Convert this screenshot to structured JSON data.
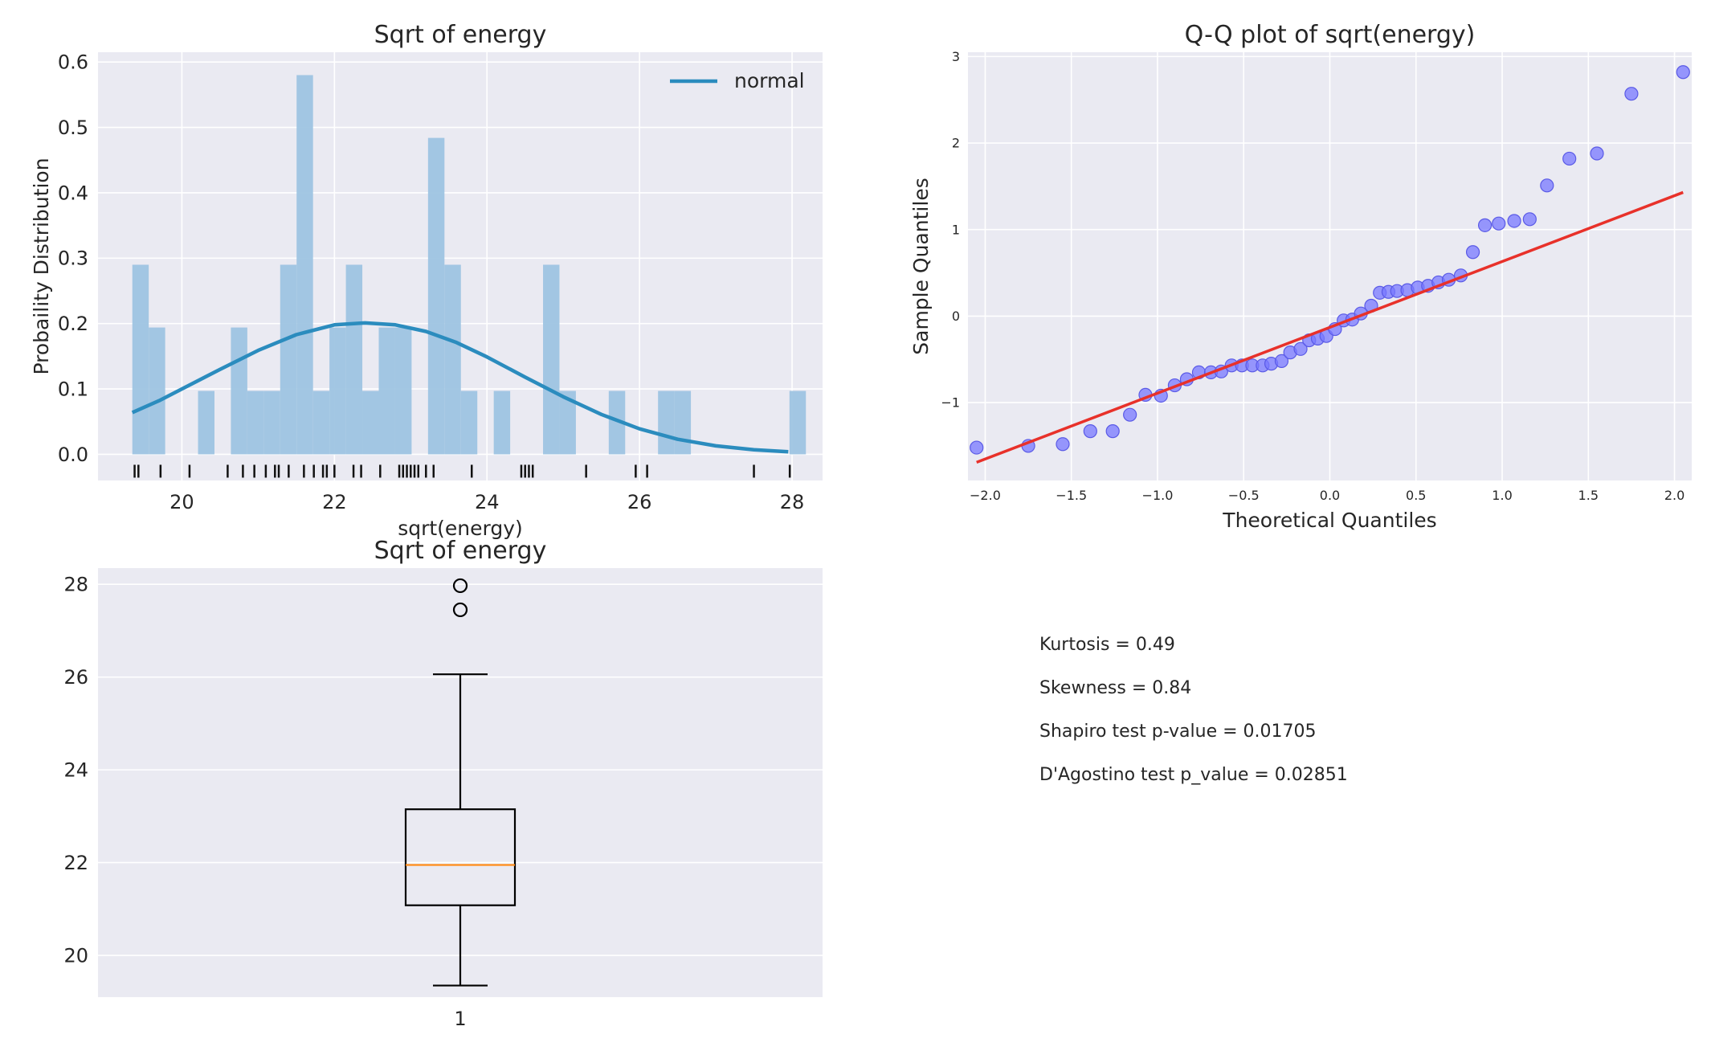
{
  "chart_data": [
    {
      "type": "histogram",
      "title": "Sqrt of energy",
      "xlabel": "sqrt(energy)",
      "ylabel": "Probaility Distribution",
      "xlim": [
        18.9,
        28.4
      ],
      "ylim": [
        -0.04,
        0.615
      ],
      "xticks": [
        20,
        22,
        24,
        26,
        28
      ],
      "yticks": [
        0.0,
        0.1,
        0.2,
        0.3,
        0.4,
        0.5,
        0.6
      ],
      "ytick_labels": [
        "0.0",
        "0.1",
        "0.2",
        "0.3",
        "0.4",
        "0.5",
        "0.6"
      ],
      "grid": true,
      "legend": {
        "placement": "upper-right",
        "entries": [
          "normal"
        ]
      },
      "bins": {
        "start": 19.35,
        "width": 0.2154,
        "heights": [
          0.29,
          0.194,
          0,
          0,
          0.097,
          0,
          0.194,
          0.097,
          0.097,
          0.29,
          0.58,
          0.097,
          0.194,
          0.29,
          0.097,
          0.194,
          0.194,
          0,
          0.484,
          0.29,
          0.097,
          0,
          0.097,
          0,
          0,
          0.29,
          0.097,
          0,
          0,
          0.097,
          0,
          0,
          0.097,
          0.097,
          0,
          0,
          0,
          0,
          0,
          0,
          0.097
        ]
      },
      "series": [
        {
          "name": "normal",
          "x": [
            19.35,
            19.7,
            20.0,
            20.5,
            21.0,
            21.5,
            22.0,
            22.4,
            22.8,
            23.2,
            23.6,
            24.0,
            24.5,
            25.0,
            25.5,
            26.0,
            26.5,
            27.0,
            27.5,
            27.95
          ],
          "y": [
            0.064,
            0.082,
            0.1,
            0.13,
            0.159,
            0.183,
            0.198,
            0.201,
            0.198,
            0.188,
            0.171,
            0.149,
            0.118,
            0.088,
            0.061,
            0.039,
            0.023,
            0.013,
            0.007,
            0.004
          ]
        }
      ],
      "rug": [
        19.38,
        19.43,
        19.72,
        20.1,
        20.6,
        20.8,
        20.95,
        21.1,
        21.22,
        21.27,
        21.4,
        21.6,
        21.73,
        21.85,
        21.9,
        22.0,
        22.25,
        22.35,
        22.6,
        22.85,
        22.9,
        22.95,
        23.0,
        23.05,
        23.1,
        23.2,
        23.3,
        23.8,
        24.45,
        24.5,
        24.55,
        24.6,
        25.3,
        25.95,
        26.1,
        27.5,
        27.97
      ]
    },
    {
      "type": "scatter",
      "title": "Q-Q plot of sqrt(energy)",
      "xlabel": "Theoretical Quantiles",
      "ylabel": "Sample Quantiles",
      "xlim": [
        -2.1,
        2.1
      ],
      "ylim": [
        -1.9,
        3.05
      ],
      "xticks": [
        -2.0,
        -1.5,
        -1.0,
        -0.5,
        0.0,
        0.5,
        1.0,
        1.5,
        2.0
      ],
      "xtick_labels": [
        "−2.0",
        "−1.5",
        "−1.0",
        "−0.5",
        "0.0",
        "0.5",
        "1.0",
        "1.5",
        "2.0"
      ],
      "yticks": [
        -1,
        0,
        1,
        2,
        3
      ],
      "ytick_labels": [
        "−1",
        "0",
        "1",
        "2",
        "3"
      ],
      "grid": true,
      "points": {
        "x": [
          -2.05,
          -1.75,
          -1.55,
          -1.39,
          -1.26,
          -1.16,
          -1.07,
          -0.98,
          -0.9,
          -0.83,
          -0.76,
          -0.69,
          -0.63,
          -0.57,
          -0.51,
          -0.45,
          -0.39,
          -0.34,
          -0.28,
          -0.23,
          -0.17,
          -0.12,
          -0.07,
          -0.02,
          0.03,
          0.08,
          0.13,
          0.18,
          0.24,
          0.29,
          0.34,
          0.39,
          0.45,
          0.51,
          0.57,
          0.63,
          0.69,
          0.76,
          0.83,
          0.9,
          0.98,
          1.07,
          1.16,
          1.26,
          1.39,
          1.55,
          1.75,
          2.05
        ],
        "y": [
          -1.52,
          -1.5,
          -1.48,
          -1.33,
          -1.33,
          -1.14,
          -0.91,
          -0.92,
          -0.8,
          -0.73,
          -0.65,
          -0.65,
          -0.64,
          -0.57,
          -0.57,
          -0.57,
          -0.57,
          -0.55,
          -0.52,
          -0.42,
          -0.38,
          -0.28,
          -0.26,
          -0.23,
          -0.15,
          -0.05,
          -0.04,
          0.03,
          0.12,
          0.27,
          0.28,
          0.29,
          0.3,
          0.33,
          0.35,
          0.39,
          0.42,
          0.47,
          0.74,
          1.05,
          1.07,
          1.1,
          1.12,
          1.51,
          1.82,
          1.88,
          2.57,
          2.82
        ]
      },
      "line": {
        "x": [
          -2.05,
          2.05
        ],
        "y": [
          -1.69,
          1.43
        ]
      }
    },
    {
      "type": "box",
      "title": "Sqrt of energy",
      "ylim": [
        19.1,
        28.35
      ],
      "yticks": [
        20,
        22,
        24,
        26,
        28
      ],
      "xtick_labels": [
        "1"
      ],
      "grid": true,
      "box": {
        "whisker_low": 19.35,
        "q1": 21.08,
        "median": 21.95,
        "q3": 23.15,
        "whisker_high": 26.06,
        "outliers": [
          27.45,
          27.97
        ]
      }
    }
  ],
  "stats": {
    "kurtosis": "Kurtosis = 0.49",
    "skewness": "Skewness = 0.84",
    "shapiro": "Shapiro test p-value = 0.01705",
    "dagostino": "D'Agostino test p_value = 0.02851"
  },
  "colors": {
    "axes_bg": "#eaeaf2",
    "grid": "#ffffff",
    "hist_fill": "#9ec4e2",
    "normal_line": "#2b8cbe",
    "qq_points": "#7878ff",
    "qq_line": "#e8312a",
    "median": "#ff8c1a"
  }
}
